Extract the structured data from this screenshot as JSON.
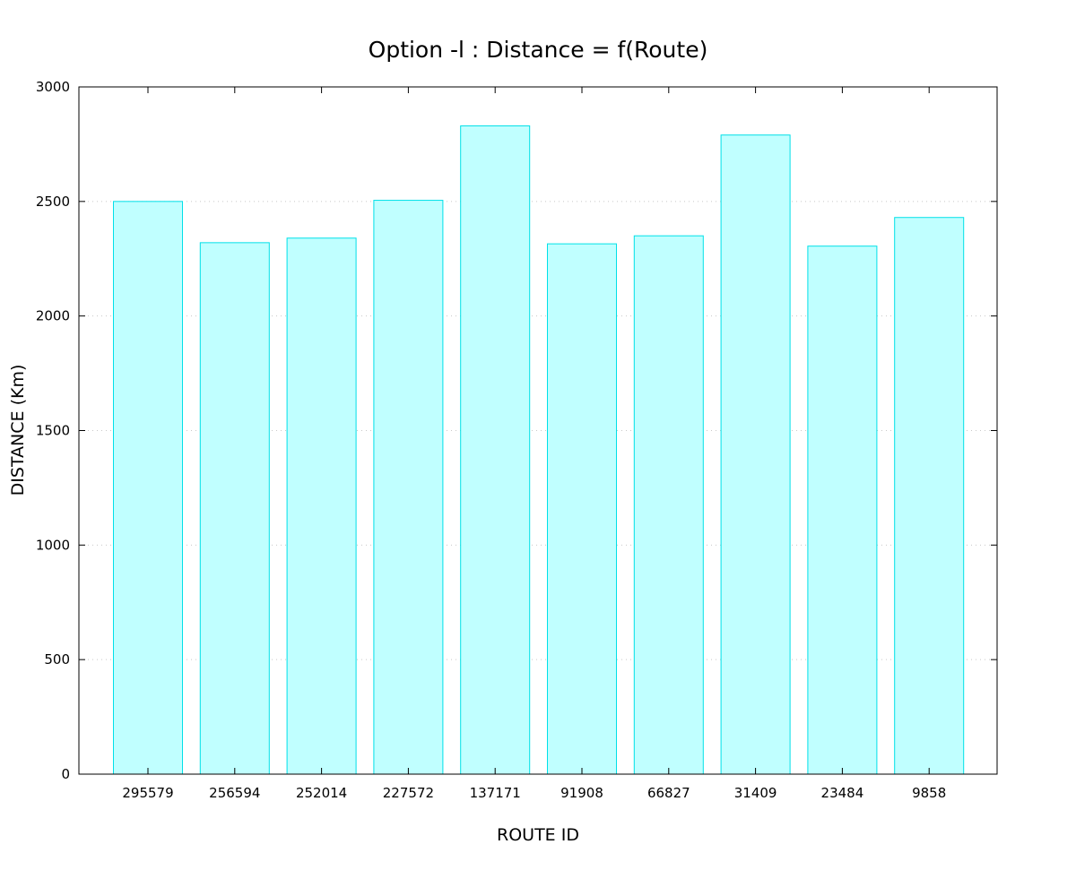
{
  "chart_data": {
    "type": "bar",
    "title": "Option -l : Distance = f(Route)",
    "xlabel": "ROUTE ID",
    "ylabel": "DISTANCE (Km)",
    "categories": [
      "295579",
      "256594",
      "252014",
      "227572",
      "137171",
      "91908",
      "66827",
      "31409",
      "23484",
      "9858"
    ],
    "values": [
      2500,
      2320,
      2340,
      2505,
      2830,
      2315,
      2350,
      2790,
      2305,
      2430
    ],
    "ylim": [
      0,
      3000
    ],
    "yticks": [
      0,
      500,
      1000,
      1500,
      2000,
      2500,
      3000
    ],
    "grid": "horizontal dotted",
    "legend": "none",
    "colors": {
      "bar_fill": "#c0ffff",
      "bar_stroke": "#00e0e8",
      "grid": "#c8c8c8",
      "axis": "#000000"
    }
  }
}
